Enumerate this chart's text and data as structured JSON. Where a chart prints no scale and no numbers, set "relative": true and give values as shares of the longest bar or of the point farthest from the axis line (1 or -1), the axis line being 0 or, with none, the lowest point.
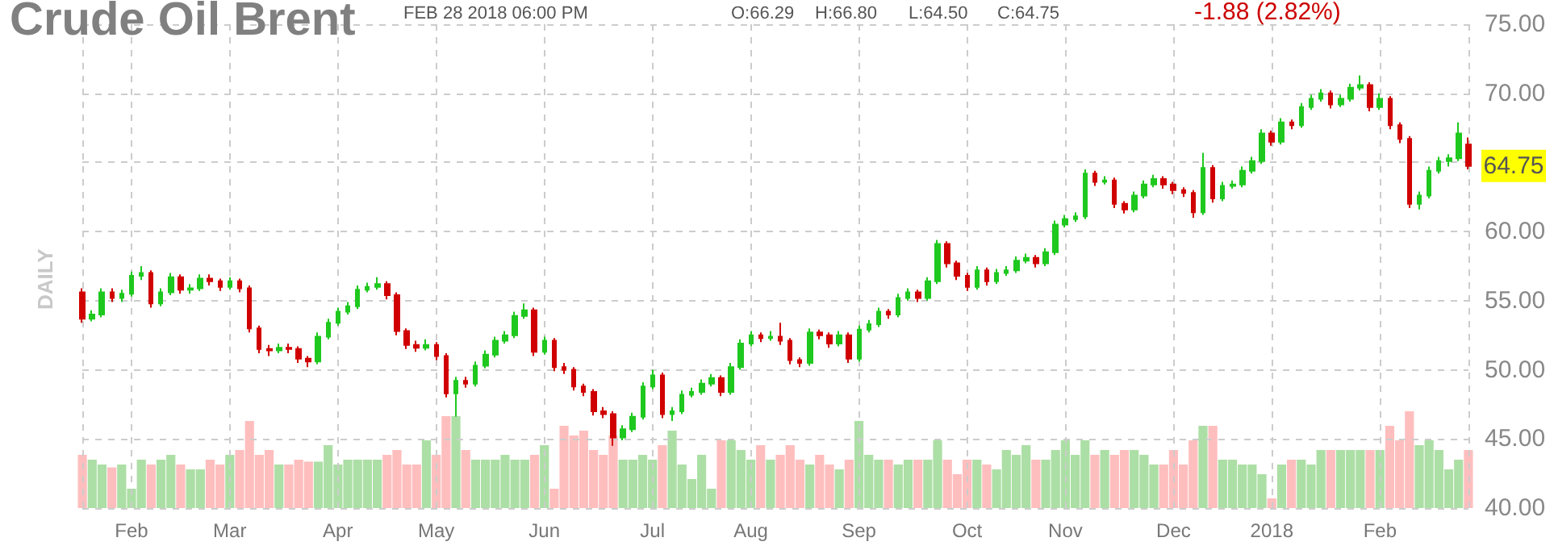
{
  "chart_data": [
    {
      "type": "candlestick",
      "title": "Crude Oil Brent",
      "subtitle": "FEB 28 2018 06:00 PM",
      "ylabel": "DAILY",
      "annotations": [
        "O:66.29",
        "H:66.80",
        "L:64.50",
        "C:64.75",
        "-1.88 (2.82%)",
        "64.75"
      ],
      "categories": [
        null,
        null,
        null,
        null,
        null,
        "Feb",
        null,
        null,
        null,
        null,
        null,
        null,
        null,
        null,
        null,
        "Mar",
        null,
        null,
        null,
        null,
        null,
        null,
        null,
        null,
        null,
        null,
        "Apr",
        null,
        null,
        null,
        null,
        null,
        null,
        null,
        null,
        null,
        "May",
        null,
        null,
        null,
        null,
        null,
        null,
        null,
        null,
        null,
        null,
        "Jun",
        null,
        null,
        null,
        null,
        null,
        null,
        null,
        null,
        null,
        null,
        "Jul",
        null,
        null,
        null,
        null,
        null,
        null,
        null,
        null,
        null,
        "Aug",
        null,
        null,
        null,
        null,
        null,
        null,
        null,
        null,
        null,
        null,
        "Sep",
        null,
        null,
        null,
        null,
        null,
        null,
        null,
        null,
        null,
        null,
        "Oct",
        null,
        null,
        null,
        null,
        null,
        null,
        null,
        null,
        null,
        "Nov",
        null,
        null,
        null,
        null,
        null,
        null,
        null,
        null,
        null,
        null,
        "Dec",
        null,
        null,
        null,
        null,
        null,
        null,
        null,
        null,
        null,
        "2018",
        null,
        null,
        null,
        null,
        null,
        null,
        null,
        null,
        null,
        null,
        "Feb",
        null,
        null,
        null,
        null,
        null,
        null,
        null,
        null,
        null
      ],
      "ohlc": [
        [
          55.6,
          55.9,
          53.4,
          53.7
        ],
        [
          53.7,
          54.3,
          53.5,
          54.0
        ],
        [
          54.0,
          55.9,
          53.8,
          55.6
        ],
        [
          55.6,
          55.9,
          54.9,
          55.2
        ],
        [
          55.2,
          55.8,
          54.9,
          55.5
        ],
        [
          55.5,
          57.1,
          55.3,
          56.8
        ],
        [
          56.8,
          57.5,
          56.5,
          57.0
        ],
        [
          57.0,
          57.2,
          54.5,
          54.8
        ],
        [
          54.8,
          55.9,
          54.6,
          55.6
        ],
        [
          55.6,
          57.0,
          55.4,
          56.7
        ],
        [
          56.7,
          56.9,
          55.5,
          55.8
        ],
        [
          55.8,
          56.2,
          55.5,
          55.9
        ],
        [
          55.9,
          56.9,
          55.7,
          56.6
        ],
        [
          56.6,
          56.9,
          56.1,
          56.4
        ],
        [
          56.4,
          56.6,
          55.7,
          56.0
        ],
        [
          56.0,
          56.7,
          55.8,
          56.4
        ],
        [
          56.4,
          56.6,
          55.6,
          55.9
        ],
        [
          55.9,
          56.1,
          52.7,
          53.0
        ],
        [
          53.0,
          53.2,
          51.2,
          51.5
        ],
        [
          51.5,
          51.8,
          51.0,
          51.4
        ],
        [
          51.4,
          51.9,
          51.2,
          51.6
        ],
        [
          51.6,
          51.9,
          51.2,
          51.5
        ],
        [
          51.5,
          51.7,
          50.5,
          50.8
        ],
        [
          50.8,
          51.0,
          50.2,
          50.6
        ],
        [
          50.6,
          52.7,
          50.4,
          52.4
        ],
        [
          52.4,
          53.7,
          52.2,
          53.4
        ],
        [
          53.4,
          54.5,
          53.2,
          54.2
        ],
        [
          54.2,
          54.9,
          54.0,
          54.6
        ],
        [
          54.6,
          56.1,
          54.4,
          55.8
        ],
        [
          55.8,
          56.3,
          55.6,
          56.0
        ],
        [
          56.0,
          56.7,
          55.8,
          56.2
        ],
        [
          56.2,
          56.4,
          55.1,
          55.4
        ],
        [
          55.4,
          55.6,
          52.5,
          52.8
        ],
        [
          52.8,
          53.0,
          51.5,
          51.8
        ],
        [
          51.8,
          52.1,
          51.3,
          51.6
        ],
        [
          51.6,
          52.2,
          51.4,
          51.8
        ],
        [
          51.8,
          52.0,
          50.7,
          51.0
        ],
        [
          51.0,
          51.2,
          48.0,
          48.3
        ],
        [
          48.3,
          49.5,
          46.6,
          49.2
        ],
        [
          49.2,
          49.5,
          48.7,
          49.0
        ],
        [
          49.0,
          50.6,
          48.8,
          50.3
        ],
        [
          50.3,
          51.4,
          50.1,
          51.1
        ],
        [
          51.1,
          52.4,
          50.9,
          52.1
        ],
        [
          52.1,
          52.8,
          51.9,
          52.5
        ],
        [
          52.5,
          54.2,
          52.3,
          53.9
        ],
        [
          53.9,
          54.8,
          53.7,
          54.3
        ],
        [
          54.3,
          54.5,
          51.0,
          51.3
        ],
        [
          51.3,
          52.4,
          51.1,
          52.1
        ],
        [
          52.1,
          52.3,
          49.9,
          50.2
        ],
        [
          50.2,
          50.5,
          49.7,
          50.0
        ],
        [
          50.0,
          50.2,
          48.5,
          48.8
        ],
        [
          48.8,
          49.0,
          48.1,
          48.4
        ],
        [
          48.4,
          48.6,
          46.7,
          47.0
        ],
        [
          47.0,
          47.3,
          46.5,
          46.8
        ],
        [
          46.8,
          47.0,
          44.5,
          45.1
        ],
        [
          45.1,
          46.0,
          44.9,
          45.7
        ],
        [
          45.7,
          46.9,
          45.5,
          46.6
        ],
        [
          46.6,
          49.1,
          46.4,
          48.8
        ],
        [
          48.8,
          50.0,
          48.6,
          49.6
        ],
        [
          49.6,
          49.8,
          46.5,
          46.8
        ],
        [
          46.8,
          47.3,
          46.3,
          47.0
        ],
        [
          47.0,
          48.5,
          46.8,
          48.2
        ],
        [
          48.2,
          48.7,
          48.0,
          48.4
        ],
        [
          48.4,
          49.3,
          48.2,
          49.0
        ],
        [
          49.0,
          49.7,
          48.8,
          49.4
        ],
        [
          49.4,
          49.6,
          48.1,
          48.4
        ],
        [
          48.4,
          50.5,
          48.2,
          50.2
        ],
        [
          50.2,
          52.2,
          50.0,
          51.9
        ],
        [
          51.9,
          52.8,
          51.7,
          52.5
        ],
        [
          52.5,
          52.7,
          52.0,
          52.3
        ],
        [
          52.3,
          52.8,
          52.1,
          52.4
        ],
        [
          52.4,
          53.4,
          51.8,
          52.1
        ],
        [
          52.1,
          52.3,
          50.4,
          50.7
        ],
        [
          50.7,
          50.9,
          50.2,
          50.5
        ],
        [
          50.5,
          53.0,
          50.3,
          52.7
        ],
        [
          52.7,
          52.9,
          52.2,
          52.5
        ],
        [
          52.5,
          52.7,
          51.6,
          51.9
        ],
        [
          51.9,
          52.8,
          51.7,
          52.5
        ],
        [
          52.5,
          52.7,
          50.5,
          50.8
        ],
        [
          50.8,
          53.2,
          50.6,
          52.9
        ],
        [
          52.9,
          53.6,
          52.7,
          53.3
        ],
        [
          53.3,
          54.5,
          53.1,
          54.2
        ],
        [
          54.2,
          54.4,
          53.7,
          54.0
        ],
        [
          54.0,
          55.5,
          53.8,
          55.2
        ],
        [
          55.2,
          55.9,
          55.0,
          55.6
        ],
        [
          55.6,
          55.8,
          54.9,
          55.2
        ],
        [
          55.2,
          56.7,
          55.0,
          56.4
        ],
        [
          56.4,
          59.4,
          56.2,
          59.1
        ],
        [
          59.1,
          59.3,
          57.4,
          57.7
        ],
        [
          57.7,
          57.9,
          56.5,
          56.8
        ],
        [
          56.8,
          57.0,
          55.7,
          56.0
        ],
        [
          56.0,
          57.5,
          55.8,
          57.2
        ],
        [
          57.2,
          57.4,
          56.1,
          56.4
        ],
        [
          56.4,
          57.3,
          56.2,
          57.0
        ],
        [
          57.0,
          57.5,
          56.8,
          57.2
        ],
        [
          57.2,
          58.2,
          57.0,
          57.9
        ],
        [
          57.9,
          58.4,
          57.7,
          58.1
        ],
        [
          58.1,
          58.3,
          57.4,
          57.7
        ],
        [
          57.7,
          58.8,
          57.5,
          58.5
        ],
        [
          58.5,
          60.8,
          58.3,
          60.5
        ],
        [
          60.5,
          61.2,
          60.3,
          60.9
        ],
        [
          60.9,
          61.4,
          60.7,
          61.1
        ],
        [
          61.1,
          64.5,
          60.9,
          64.2
        ],
        [
          64.2,
          64.4,
          63.3,
          63.6
        ],
        [
          63.6,
          64.0,
          63.4,
          63.7
        ],
        [
          63.7,
          63.9,
          61.7,
          62.0
        ],
        [
          62.0,
          62.2,
          61.3,
          61.6
        ],
        [
          61.6,
          62.9,
          61.4,
          62.6
        ],
        [
          62.6,
          63.7,
          62.4,
          63.4
        ],
        [
          63.4,
          64.1,
          63.2,
          63.8
        ],
        [
          63.8,
          64.0,
          63.1,
          63.4
        ],
        [
          63.4,
          63.6,
          62.7,
          63.0
        ],
        [
          63.0,
          63.2,
          62.5,
          62.8
        ],
        [
          62.8,
          63.0,
          61.0,
          61.4
        ],
        [
          61.4,
          65.7,
          61.2,
          64.6
        ],
        [
          64.6,
          64.8,
          62.1,
          62.4
        ],
        [
          62.4,
          63.6,
          62.2,
          63.3
        ],
        [
          63.3,
          63.7,
          63.1,
          63.4
        ],
        [
          63.4,
          64.7,
          63.2,
          64.4
        ],
        [
          64.4,
          65.4,
          64.2,
          65.1
        ],
        [
          65.1,
          67.4,
          64.9,
          67.1
        ],
        [
          67.1,
          67.3,
          66.2,
          66.5
        ],
        [
          66.5,
          68.2,
          66.3,
          67.9
        ],
        [
          67.9,
          68.1,
          67.4,
          67.7
        ],
        [
          67.7,
          69.3,
          67.5,
          69.0
        ],
        [
          69.0,
          69.9,
          68.8,
          69.6
        ],
        [
          69.6,
          70.3,
          69.4,
          70.0
        ],
        [
          70.0,
          70.2,
          68.9,
          69.2
        ],
        [
          69.2,
          69.9,
          69.0,
          69.6
        ],
        [
          69.6,
          70.7,
          69.4,
          70.4
        ],
        [
          70.4,
          71.3,
          70.2,
          70.6
        ],
        [
          70.6,
          70.8,
          68.7,
          69.0
        ],
        [
          69.0,
          70.0,
          68.8,
          69.6
        ],
        [
          69.6,
          69.8,
          67.4,
          67.7
        ],
        [
          67.7,
          67.9,
          66.4,
          66.7
        ],
        [
          66.7,
          66.9,
          61.7,
          62.0
        ],
        [
          62.0,
          62.9,
          61.6,
          62.6
        ],
        [
          62.6,
          64.7,
          62.4,
          64.4
        ],
        [
          64.4,
          65.4,
          64.2,
          65.1
        ],
        [
          65.1,
          65.6,
          64.7,
          65.3
        ],
        [
          65.3,
          67.9,
          65.1,
          67.1
        ],
        [
          66.29,
          66.8,
          64.5,
          64.75
        ]
      ],
      "colors": [
        "#d00000",
        "#1ec81e",
        "#1ec81e",
        "#d00000",
        "#1ec81e",
        "#1ec81e",
        "#1ec81e",
        "#d00000",
        "#1ec81e",
        "#1ec81e",
        "#d00000",
        "#1ec81e",
        "#1ec81e",
        "#d00000",
        "#d00000",
        "#1ec81e",
        "#d00000",
        "#d00000",
        "#d00000",
        "#d00000",
        "#1ec81e",
        "#d00000",
        "#d00000",
        "#d00000",
        "#1ec81e",
        "#1ec81e",
        "#1ec81e",
        "#1ec81e",
        "#1ec81e",
        "#1ec81e",
        "#1ec81e",
        "#d00000",
        "#d00000",
        "#d00000",
        "#d00000",
        "#1ec81e",
        "#d00000",
        "#d00000",
        "#1ec81e",
        "#d00000",
        "#1ec81e",
        "#1ec81e",
        "#1ec81e",
        "#1ec81e",
        "#1ec81e",
        "#1ec81e",
        "#d00000",
        "#1ec81e",
        "#d00000",
        "#d00000",
        "#d00000",
        "#d00000",
        "#d00000",
        "#d00000",
        "#d00000",
        "#1ec81e",
        "#1ec81e",
        "#1ec81e",
        "#1ec81e",
        "#d00000",
        "#1ec81e",
        "#1ec81e",
        "#1ec81e",
        "#1ec81e",
        "#1ec81e",
        "#d00000",
        "#1ec81e",
        "#1ec81e",
        "#1ec81e",
        "#d00000",
        "#1ec81e",
        "#d00000",
        "#d00000",
        "#d00000",
        "#1ec81e",
        "#d00000",
        "#d00000",
        "#1ec81e",
        "#d00000",
        "#1ec81e",
        "#1ec81e",
        "#1ec81e",
        "#d00000",
        "#1ec81e",
        "#1ec81e",
        "#d00000",
        "#1ec81e",
        "#1ec81e",
        "#d00000",
        "#d00000",
        "#d00000",
        "#1ec81e",
        "#d00000",
        "#1ec81e",
        "#1ec81e",
        "#1ec81e",
        "#1ec81e",
        "#d00000",
        "#1ec81e",
        "#1ec81e",
        "#1ec81e",
        "#1ec81e",
        "#1ec81e",
        "#d00000",
        "#1ec81e",
        "#d00000",
        "#d00000",
        "#1ec81e",
        "#1ec81e",
        "#1ec81e",
        "#d00000",
        "#d00000",
        "#d00000",
        "#d00000",
        "#1ec81e",
        "#d00000",
        "#1ec81e",
        "#1ec81e",
        "#1ec81e",
        "#1ec81e",
        "#1ec81e",
        "#d00000",
        "#1ec81e",
        "#d00000",
        "#1ec81e",
        "#1ec81e",
        "#1ec81e",
        "#d00000",
        "#1ec81e",
        "#1ec81e",
        "#1ec81e",
        "#d00000",
        "#1ec81e",
        "#d00000",
        "#d00000",
        "#d00000",
        "#1ec81e",
        "#1ec81e",
        "#1ec81e",
        "#1ec81e",
        "#1ec81e",
        "#d00000"
      ],
      "ylim": [
        40,
        75
      ],
      "yticks": [
        {
          "value": 40,
          "label": "40.00"
        },
        {
          "value": 45,
          "label": "45.00"
        },
        {
          "value": 50,
          "label": "50.00"
        },
        {
          "value": 55,
          "label": "55.00"
        },
        {
          "value": 60,
          "label": "60.00"
        },
        {
          "value": 65,
          "label": null
        },
        {
          "value": 70,
          "label": "70.00"
        },
        {
          "value": 75,
          "label": "75.00"
        }
      ],
      "grid": true
    },
    {
      "type": "bar",
      "relative": true,
      "tick_labels": false,
      "categories": [
        null,
        null,
        null,
        null,
        null,
        null,
        null,
        null,
        null,
        null,
        null,
        null,
        null,
        null,
        null,
        null,
        null,
        null,
        null,
        null,
        null,
        null,
        null,
        null,
        null,
        null,
        null,
        null,
        null,
        null,
        null,
        null,
        null,
        null,
        null,
        null,
        null,
        null,
        null,
        null,
        null,
        null,
        null,
        null,
        null,
        null,
        null,
        null,
        null,
        null,
        null,
        null,
        null,
        null,
        null,
        null,
        null,
        null,
        null,
        null,
        null,
        null,
        null,
        null,
        null,
        null,
        null,
        null,
        null,
        null,
        null,
        null,
        null,
        null,
        null,
        null,
        null,
        null,
        null,
        null,
        null,
        null,
        null,
        null,
        null,
        null,
        null,
        null,
        null,
        null,
        null,
        null,
        null,
        null,
        null,
        null,
        null,
        null,
        null,
        null,
        null,
        null,
        null,
        null,
        null,
        null,
        null,
        null,
        null,
        null,
        null,
        null,
        null,
        null,
        null,
        null,
        null,
        null,
        null,
        null,
        null,
        null,
        null,
        null,
        null,
        null,
        null,
        null,
        null,
        null,
        null,
        null,
        null,
        null,
        null,
        null,
        null,
        null,
        null,
        null,
        null,
        null
      ],
      "values": [
        0.55,
        0.5,
        0.45,
        0.42,
        0.45,
        0.2,
        0.5,
        0.45,
        0.5,
        0.55,
        0.45,
        0.4,
        0.4,
        0.5,
        0.45,
        0.55,
        0.6,
        0.9,
        0.55,
        0.6,
        0.45,
        0.45,
        0.5,
        0.48,
        0.48,
        0.65,
        0.45,
        0.5,
        0.5,
        0.5,
        0.5,
        0.55,
        0.6,
        0.45,
        0.45,
        0.7,
        0.55,
        0.95,
        0.95,
        0.6,
        0.5,
        0.5,
        0.5,
        0.55,
        0.5,
        0.5,
        0.55,
        0.65,
        0.2,
        0.85,
        0.75,
        0.8,
        0.6,
        0.55,
        0.75,
        0.5,
        0.5,
        0.55,
        0.5,
        0.65,
        0.8,
        0.45,
        0.3,
        0.55,
        0.2,
        0.7,
        0.7,
        0.6,
        0.5,
        0.65,
        0.5,
        0.55,
        0.65,
        0.5,
        0.45,
        0.55,
        0.45,
        0.4,
        0.5,
        0.9,
        0.55,
        0.5,
        0.5,
        0.45,
        0.5,
        0.5,
        0.5,
        0.7,
        0.5,
        0.35,
        0.5,
        0.5,
        0.45,
        0.4,
        0.6,
        0.55,
        0.65,
        0.5,
        0.5,
        0.6,
        0.7,
        0.55,
        0.7,
        0.55,
        0.6,
        0.55,
        0.6,
        0.6,
        0.55,
        0.45,
        0.45,
        0.6,
        0.45,
        0.7,
        0.85,
        0.85,
        0.5,
        0.5,
        0.45,
        0.45,
        0.35,
        0.1,
        0.45,
        0.5,
        0.5,
        0.45,
        0.6,
        0.6,
        0.6,
        0.6,
        0.6,
        0.6,
        0.6,
        0.85,
        0.7,
        1,
        0.65,
        0.7,
        0.6,
        0.4,
        0.5,
        0.6
      ],
      "colors": [
        "#ffbebe",
        "#acdfa5",
        "#acdfa5",
        "#ffbebe",
        "#acdfa5",
        "#acdfa5",
        "#acdfa5",
        "#ffbebe",
        "#acdfa5",
        "#acdfa5",
        "#ffbebe",
        "#acdfa5",
        "#acdfa5",
        "#ffbebe",
        "#ffbebe",
        "#acdfa5",
        "#ffbebe",
        "#ffbebe",
        "#ffbebe",
        "#ffbebe",
        "#acdfa5",
        "#ffbebe",
        "#ffbebe",
        "#ffbebe",
        "#acdfa5",
        "#acdfa5",
        "#acdfa5",
        "#acdfa5",
        "#acdfa5",
        "#acdfa5",
        "#acdfa5",
        "#ffbebe",
        "#ffbebe",
        "#ffbebe",
        "#ffbebe",
        "#acdfa5",
        "#ffbebe",
        "#ffbebe",
        "#acdfa5",
        "#ffbebe",
        "#acdfa5",
        "#acdfa5",
        "#acdfa5",
        "#acdfa5",
        "#acdfa5",
        "#acdfa5",
        "#ffbebe",
        "#acdfa5",
        "#ffbebe",
        "#ffbebe",
        "#ffbebe",
        "#ffbebe",
        "#ffbebe",
        "#ffbebe",
        "#ffbebe",
        "#acdfa5",
        "#acdfa5",
        "#acdfa5",
        "#acdfa5",
        "#ffbebe",
        "#acdfa5",
        "#acdfa5",
        "#acdfa5",
        "#acdfa5",
        "#acdfa5",
        "#ffbebe",
        "#acdfa5",
        "#acdfa5",
        "#acdfa5",
        "#ffbebe",
        "#acdfa5",
        "#ffbebe",
        "#ffbebe",
        "#ffbebe",
        "#acdfa5",
        "#ffbebe",
        "#ffbebe",
        "#acdfa5",
        "#ffbebe",
        "#acdfa5",
        "#acdfa5",
        "#acdfa5",
        "#ffbebe",
        "#acdfa5",
        "#acdfa5",
        "#ffbebe",
        "#acdfa5",
        "#acdfa5",
        "#ffbebe",
        "#ffbebe",
        "#ffbebe",
        "#acdfa5",
        "#ffbebe",
        "#acdfa5",
        "#acdfa5",
        "#acdfa5",
        "#acdfa5",
        "#ffbebe",
        "#acdfa5",
        "#acdfa5",
        "#acdfa5",
        "#acdfa5",
        "#acdfa5",
        "#ffbebe",
        "#acdfa5",
        "#ffbebe",
        "#ffbebe",
        "#acdfa5",
        "#acdfa5",
        "#acdfa5",
        "#ffbebe",
        "#ffbebe",
        "#ffbebe",
        "#ffbebe",
        "#acdfa5",
        "#ffbebe",
        "#acdfa5",
        "#acdfa5",
        "#acdfa5",
        "#acdfa5",
        "#acdfa5",
        "#ffbebe",
        "#acdfa5",
        "#ffbebe",
        "#acdfa5",
        "#acdfa5",
        "#acdfa5",
        "#ffbebe",
        "#acdfa5",
        "#acdfa5",
        "#acdfa5",
        "#ffbebe",
        "#acdfa5",
        "#ffbebe",
        "#ffbebe",
        "#ffbebe",
        "#acdfa5",
        "#acdfa5",
        "#acdfa5",
        "#acdfa5",
        "#acdfa5",
        "#ffbebe"
      ]
    }
  ]
}
